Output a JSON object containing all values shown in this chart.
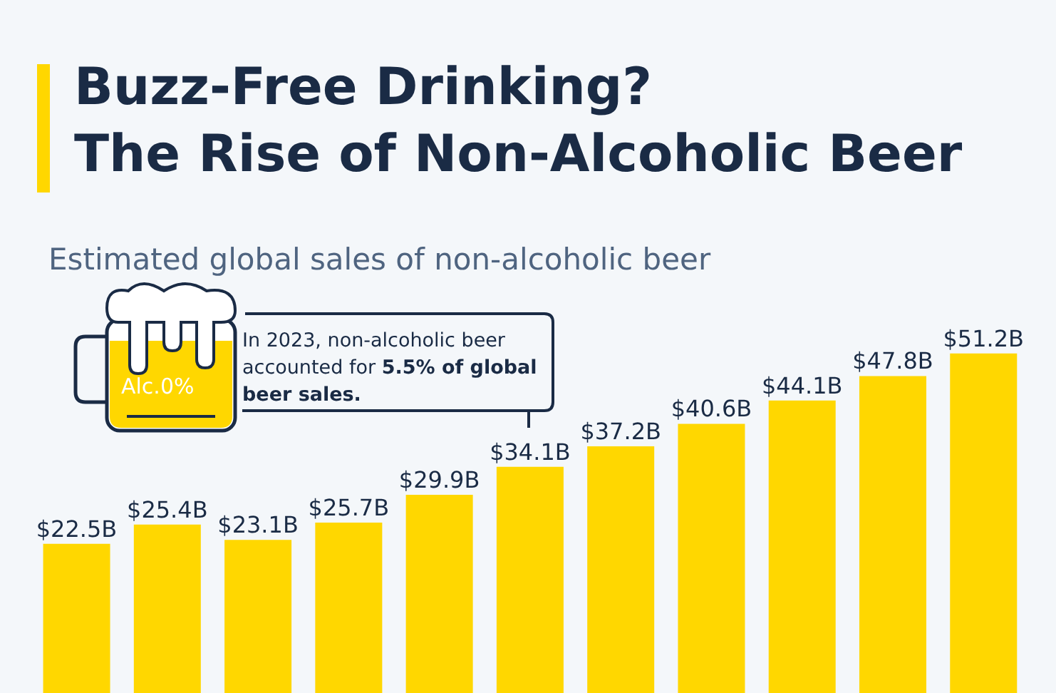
{
  "chart_data": {
    "type": "bar",
    "title": "Buzz-Free Drinking?\nThe Rise of Non-Alcoholic Beer",
    "subtitle": "Estimated global sales of non-alcoholic beer",
    "categories": [
      null,
      null,
      null,
      null,
      null,
      null,
      null,
      null,
      null,
      null,
      null
    ],
    "values": [
      22.5,
      25.4,
      23.1,
      25.7,
      29.9,
      34.1,
      37.2,
      40.6,
      44.1,
      47.8,
      51.2
    ],
    "value_labels": [
      "$22.5B",
      "$25.4B",
      "$23.1B",
      "$25.7B",
      "$29.9B",
      "$34.1B",
      "$37.2B",
      "$40.6B",
      "$44.1B",
      "$47.8B",
      "$51.2B"
    ],
    "color": "#ffd700",
    "annotations": [
      "In 2023, non-alcoholic beer accounted for",
      "5.5% of global beer sales.",
      "Alc.0%"
    ]
  }
}
